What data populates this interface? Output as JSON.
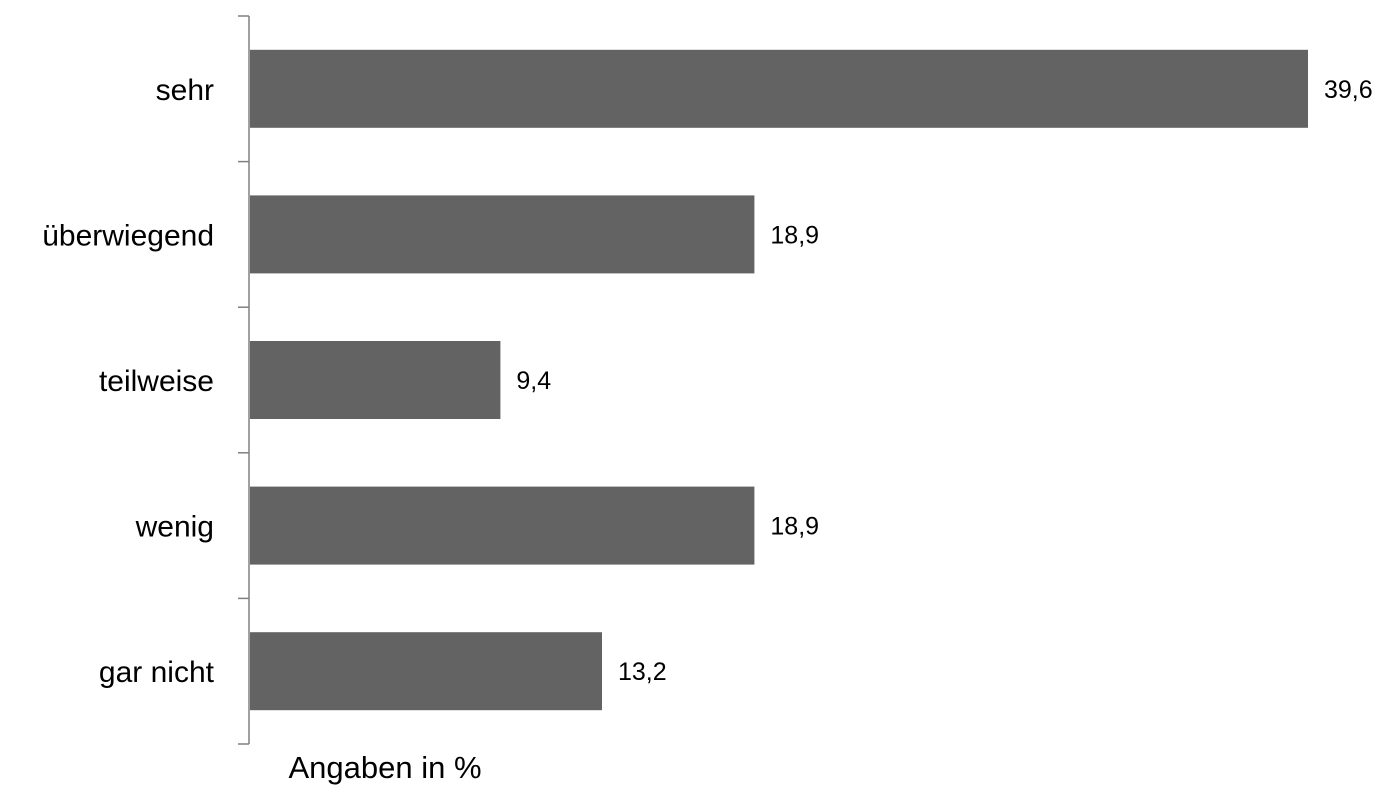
{
  "chart_data": {
    "type": "bar",
    "orientation": "horizontal",
    "categories": [
      "sehr",
      "überwiegend",
      "teilweise",
      "wenig",
      "gar nicht"
    ],
    "values": [
      39.6,
      18.9,
      9.4,
      18.9,
      13.2
    ],
    "value_labels": [
      "39,6",
      "18,9",
      "9,4",
      "18,9",
      "13,2"
    ],
    "xlabel": "Angaben in %",
    "xlim": [
      0,
      39.6
    ],
    "grid": false,
    "legend": "none",
    "bar_color": "#636363",
    "axis_color": "#808080"
  }
}
